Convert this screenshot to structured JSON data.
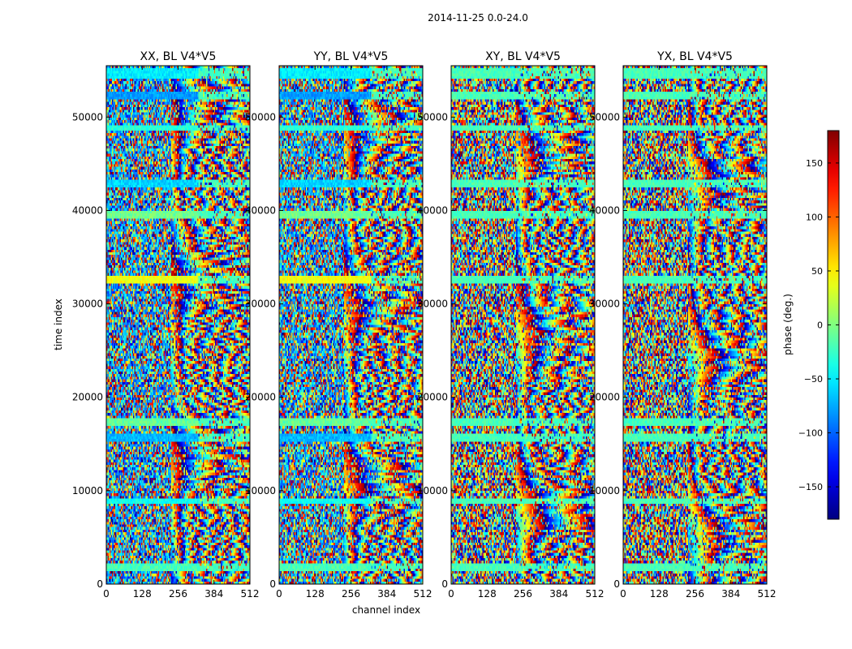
{
  "figure": {
    "suptitle": "2014-11-25 0.0-24.0"
  },
  "colors": {
    "frame": "#000000",
    "background": "#ffffff"
  },
  "chart_data": {
    "type": "heatmap",
    "colormap": "jet",
    "xlabel": "channel index",
    "ylabel": "time index",
    "xlim": [
      0,
      512
    ],
    "ylim": [
      0,
      55500
    ],
    "xticks": [
      0,
      128,
      256,
      384,
      512
    ],
    "yticks": [
      0,
      10000,
      20000,
      30000,
      40000,
      50000
    ],
    "x_tick_labels": [
      "0",
      "128",
      "256",
      "384",
      "512"
    ],
    "y_tick_labels": [
      "0",
      "10000",
      "20000",
      "30000",
      "40000",
      "50000"
    ],
    "panels": [
      {
        "title": "XX, BL V4*V5",
        "polarization": "XX"
      },
      {
        "title": "YY, BL V4*V5",
        "polarization": "YY"
      },
      {
        "title": "XY, BL V4*V5",
        "polarization": "XY"
      },
      {
        "title": "YX, BL V4*V5",
        "polarization": "YX"
      }
    ],
    "colorbar": {
      "label": "phase (deg.)",
      "range": [
        -180,
        180
      ],
      "ticks": [
        -150,
        -100,
        -50,
        0,
        50,
        100,
        150
      ],
      "tick_labels": [
        "−150",
        "−100",
        "−50",
        "0",
        "50",
        "100",
        "150"
      ]
    },
    "flagged_bands": [
      {
        "t_start": 1500,
        "t_end": 2300,
        "parallel_phase": -20
      },
      {
        "t_start": 8600,
        "t_end": 9200,
        "parallel_phase": -40
      },
      {
        "t_start": 15200,
        "t_end": 16100,
        "parallel_phase": -70
      },
      {
        "t_start": 16900,
        "t_end": 17700,
        "parallel_phase": -10
      },
      {
        "t_start": 32300,
        "t_end": 33000,
        "parallel_phase": 40
      },
      {
        "t_start": 39200,
        "t_end": 40000,
        "parallel_phase": -5
      },
      {
        "t_start": 42500,
        "t_end": 43300,
        "parallel_phase": -60
      },
      {
        "t_start": 48500,
        "t_end": 49100,
        "parallel_phase": -30
      },
      {
        "t_start": 52000,
        "t_end": 52800,
        "parallel_phase": -80
      },
      {
        "t_start": 54000,
        "t_end": 55200,
        "parallel_phase": -50
      }
    ]
  }
}
